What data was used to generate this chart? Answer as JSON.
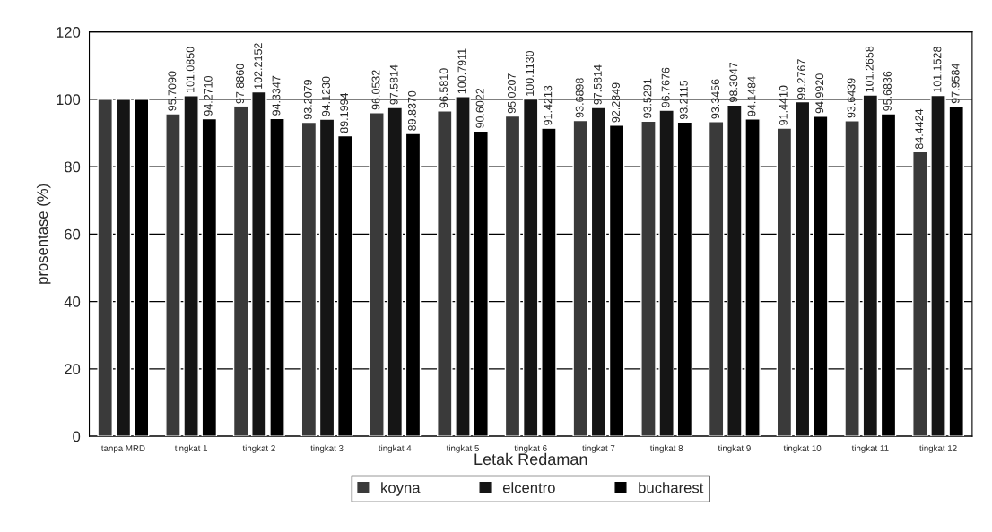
{
  "chart_data": {
    "type": "bar",
    "xlabel": "Letak Redaman",
    "ylabel": "prosentase (%)",
    "categories": [
      "tanpa MRD",
      "tingkat 1",
      "tingkat 2",
      "tingkat 3",
      "tingkat 4",
      "tingkat 5",
      "tingkat 6",
      "tingkat 7",
      "tingkat 8",
      "tingkat 9",
      "tingkat 10",
      "tingkat 11",
      "tingkat 12"
    ],
    "series": [
      {
        "name": "koyna",
        "color": "#3a3a3a",
        "values": [
          100,
          95.709,
          97.886,
          93.2079,
          96.0532,
          96.581,
          95.0207,
          93.6898,
          93.5291,
          93.3456,
          91.441,
          93.6439,
          84.4424
        ],
        "value_labels": [
          null,
          "95.7090",
          "97.8860",
          "93.2079",
          "96.0532",
          "96.5810",
          "95.0207",
          "93.6898",
          "93.5291",
          "93.3456",
          "91.4410",
          "93.6439",
          "84.4424"
        ]
      },
      {
        "name": "elcentro",
        "color": "#151515",
        "values": [
          100,
          101.085,
          102.2152,
          94.123,
          97.5814,
          100.7911,
          100.113,
          97.5814,
          96.7676,
          98.3047,
          99.2767,
          101.2658,
          101.1528
        ],
        "value_labels": [
          null,
          "101.0850",
          "102.2152",
          "94.1230",
          "97.5814",
          "100.7911",
          "100.1130",
          "97.5814",
          "96.7676",
          "98.3047",
          "99.2767",
          "101.2658",
          "101.1528"
        ]
      },
      {
        "name": "bucharest",
        "color": "#000000",
        "values": [
          100,
          94.271,
          94.3347,
          89.1994,
          89.837,
          90.6022,
          91.4213,
          92.2849,
          93.2115,
          94.1484,
          94.992,
          95.6836,
          97.9584
        ],
        "value_labels": [
          null,
          "94.2710",
          "94.3347",
          "89.1994",
          "89.8370",
          "90.6022",
          "91.4213",
          "92.2849",
          "93.2115",
          "94.1484",
          "94.9920",
          "95.6836",
          "97.9584"
        ]
      }
    ],
    "ylim": [
      0,
      120
    ],
    "yticks": [
      0,
      20,
      40,
      60,
      80,
      100,
      120
    ],
    "grid": "y",
    "legend": "bottom"
  }
}
